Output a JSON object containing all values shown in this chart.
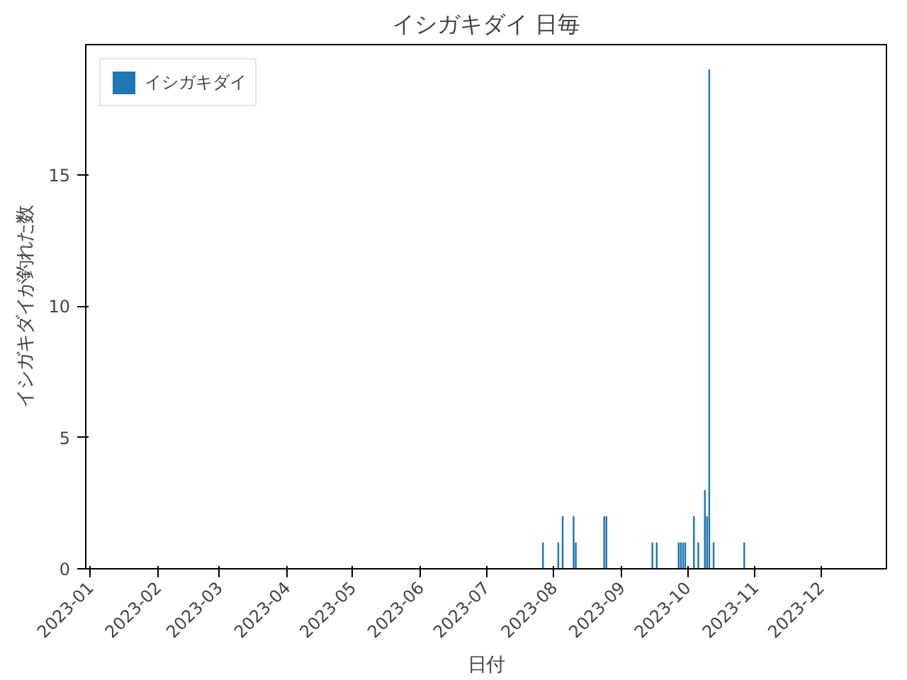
{
  "chart_data": {
    "type": "bar",
    "title": "イシガキダイ 日毎",
    "xlabel": "日付",
    "ylabel": "イシガキダイが釣れた数",
    "x": [
      "2023-07-27",
      "2023-08-03",
      "2023-08-05",
      "2023-08-10",
      "2023-08-11",
      "2023-08-24",
      "2023-08-25",
      "2023-09-15",
      "2023-09-17",
      "2023-09-27",
      "2023-09-28",
      "2023-09-29",
      "2023-09-30",
      "2023-10-04",
      "2023-10-06",
      "2023-10-09",
      "2023-10-10",
      "2023-10-11",
      "2023-10-13",
      "2023-10-27"
    ],
    "series": [
      {
        "name": "イシガキダイ",
        "color": "#1f77b4",
        "values": [
          1,
          1,
          2,
          2,
          1,
          2,
          2,
          1,
          1,
          1,
          1,
          1,
          1,
          2,
          1,
          3,
          2,
          19,
          1,
          1
        ]
      }
    ],
    "xlim": [
      "2022-12-30",
      "2023-12-31"
    ],
    "xticks": [
      {
        "value": "2023-01-01",
        "label": "2023-01"
      },
      {
        "value": "2023-02-01",
        "label": "2023-02"
      },
      {
        "value": "2023-03-01",
        "label": "2023-03"
      },
      {
        "value": "2023-04-01",
        "label": "2023-04"
      },
      {
        "value": "2023-05-01",
        "label": "2023-05"
      },
      {
        "value": "2023-06-01",
        "label": "2023-06"
      },
      {
        "value": "2023-07-01",
        "label": "2023-07"
      },
      {
        "value": "2023-08-01",
        "label": "2023-08"
      },
      {
        "value": "2023-09-01",
        "label": "2023-09"
      },
      {
        "value": "2023-10-01",
        "label": "2023-10"
      },
      {
        "value": "2023-11-01",
        "label": "2023-11"
      },
      {
        "value": "2023-12-01",
        "label": "2023-12"
      }
    ],
    "ylim": [
      0,
      19.95
    ],
    "yticks": [
      0,
      5,
      10,
      15
    ],
    "grid": false,
    "legend": "top left"
  }
}
